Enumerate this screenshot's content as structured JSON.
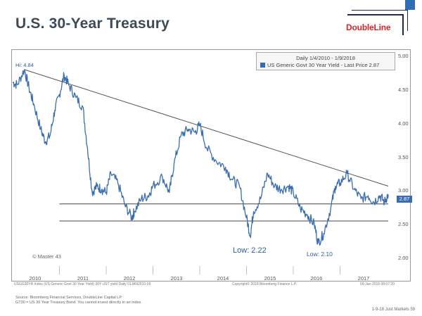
{
  "title": "U.S. 30-Year Treasury",
  "logo": {
    "text": "DoubleLine"
  },
  "colors": {
    "series": "#3a6db0",
    "accent": "#d8232a",
    "title": "#3f4a57"
  },
  "legend": {
    "period": "Daily 1/4/2010 - 1/9/2018",
    "series_label": "US Generic Govt 30 Year Yield - Last Price 2.87"
  },
  "annotations": {
    "hi": "Hi: 4.84",
    "low_2012": "Low: 2.22",
    "low_2016": "Low: 2.10",
    "last_price": "2.87",
    "watermark": "© Master 43"
  },
  "footer": {
    "ticker": "USGG30YR Index (US Generic Govt 30 Year Yield) 30Y UST yield  Daily 01JAN2010-09",
    "copyright": "Copyright© 2018 Bloomberg Finance L.P.",
    "date": "09-Jan-2018 08:07:20",
    "source_line1": "Source: Bloomberg Financial Services, DoubleLine Capital LP",
    "source_line2": "GT30 = US 30 Year Treasury Bond. You cannot invest directly in an index.",
    "page": "1-9-18 Just Markets    59"
  },
  "chart_data": {
    "type": "line",
    "title": "",
    "xlabel": "",
    "ylabel": "",
    "x_ticks": [
      "2010",
      "2011",
      "2012",
      "2013",
      "2014",
      "2015",
      "2016",
      "2017"
    ],
    "y_ticks": [
      "5.00",
      "4.50",
      "4.00",
      "3.50",
      "3.00",
      "2.50",
      "2.00"
    ],
    "ylim": [
      1.85,
      5.05
    ],
    "xlim": [
      2010.0,
      2018.03
    ],
    "series": [
      {
        "name": "US Generic Govt 30 Year Yield",
        "points": [
          [
            2010.0,
            4.64
          ],
          [
            2010.1,
            4.6
          ],
          [
            2010.25,
            4.84
          ],
          [
            2010.35,
            4.55
          ],
          [
            2010.45,
            4.3
          ],
          [
            2010.6,
            3.9
          ],
          [
            2010.7,
            3.7
          ],
          [
            2010.8,
            3.8
          ],
          [
            2010.9,
            4.2
          ],
          [
            2011.0,
            4.45
          ],
          [
            2011.1,
            4.75
          ],
          [
            2011.2,
            4.6
          ],
          [
            2011.35,
            4.4
          ],
          [
            2011.5,
            4.25
          ],
          [
            2011.6,
            3.6
          ],
          [
            2011.7,
            2.9
          ],
          [
            2011.8,
            3.0
          ],
          [
            2011.9,
            2.95
          ],
          [
            2012.0,
            2.9
          ],
          [
            2012.1,
            3.2
          ],
          [
            2012.25,
            3.05
          ],
          [
            2012.4,
            2.7
          ],
          [
            2012.55,
            2.5
          ],
          [
            2012.6,
            2.6
          ],
          [
            2012.75,
            2.8
          ],
          [
            2012.9,
            2.85
          ],
          [
            2013.0,
            3.0
          ],
          [
            2013.2,
            3.15
          ],
          [
            2013.35,
            2.9
          ],
          [
            2013.45,
            3.35
          ],
          [
            2013.6,
            3.8
          ],
          [
            2013.75,
            3.9
          ],
          [
            2013.9,
            3.85
          ],
          [
            2014.0,
            3.97
          ],
          [
            2014.15,
            3.6
          ],
          [
            2014.35,
            3.4
          ],
          [
            2014.55,
            3.3
          ],
          [
            2014.7,
            3.1
          ],
          [
            2014.85,
            3.0
          ],
          [
            2015.0,
            2.5
          ],
          [
            2015.08,
            2.22
          ],
          [
            2015.15,
            2.6
          ],
          [
            2015.3,
            2.8
          ],
          [
            2015.45,
            3.2
          ],
          [
            2015.6,
            3.0
          ],
          [
            2015.75,
            2.95
          ],
          [
            2015.9,
            3.0
          ],
          [
            2016.0,
            2.9
          ],
          [
            2016.15,
            2.65
          ],
          [
            2016.3,
            2.55
          ],
          [
            2016.45,
            2.4
          ],
          [
            2016.53,
            2.1
          ],
          [
            2016.65,
            2.25
          ],
          [
            2016.8,
            2.65
          ],
          [
            2016.9,
            3.0
          ],
          [
            2017.0,
            3.05
          ],
          [
            2017.15,
            3.2
          ],
          [
            2017.3,
            2.95
          ],
          [
            2017.45,
            2.8
          ],
          [
            2017.6,
            2.85
          ],
          [
            2017.72,
            2.75
          ],
          [
            2017.85,
            2.85
          ],
          [
            2017.95,
            2.75
          ],
          [
            2018.03,
            2.87
          ]
        ]
      }
    ],
    "trendline": {
      "start": [
        2010.25,
        4.84
      ],
      "end": [
        2018.03,
        3.0
      ]
    },
    "support_lines": [
      2.72,
      2.45
    ]
  }
}
